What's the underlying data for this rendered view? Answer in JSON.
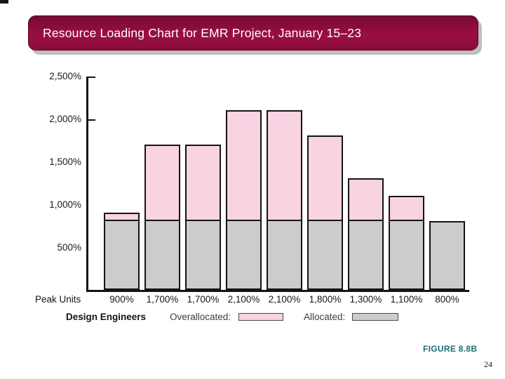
{
  "slide": {
    "title": "Resource Loading Chart for EMR Project, January 15–23",
    "figure_caption": "FIGURE 8.8B",
    "page_number": "24"
  },
  "chart_data": {
    "type": "bar",
    "stacked": true,
    "title": "Resource Loading Chart for EMR Project, January 15–23",
    "xlabel": "",
    "ylabel": "",
    "x_row_title": "Peak Units",
    "categories": [
      "900%",
      "1,700%",
      "1,700%",
      "2,100%",
      "2,100%",
      "1,800%",
      "1,300%",
      "1,100%",
      "800%"
    ],
    "peak_units": [
      900,
      1700,
      1700,
      2100,
      2100,
      1800,
      1300,
      1100,
      800
    ],
    "series": [
      {
        "name": "Allocated",
        "values": [
          800,
          800,
          800,
          800,
          800,
          800,
          800,
          800,
          800
        ],
        "color": "#cccccc"
      },
      {
        "name": "Overallocated",
        "values": [
          100,
          900,
          900,
          1300,
          1300,
          1000,
          500,
          300,
          0
        ],
        "color": "#f8d3e2"
      }
    ],
    "ylim": [
      0,
      2500
    ],
    "y_ticks": [
      "2,500%",
      "2,000%",
      "1,500%",
      "1,000%",
      "500%"
    ],
    "y_tick_values": [
      2500,
      2000,
      1500,
      1000,
      500
    ],
    "tick_marks_at": [
      2500,
      2000
    ],
    "grid": false,
    "legend_position": "bottom",
    "legend": {
      "resource_label": "Design Engineers",
      "overallocated_label": "Overallocated:",
      "allocated_label": "Allocated:"
    }
  },
  "colors": {
    "banner": "#8f0c3c",
    "banner_text": "#ffffff",
    "overallocated": "#f8d3e2",
    "allocated": "#cccccc",
    "bar_border": "#141414",
    "caption_teal": "#1d6b74",
    "shadow": "#bfbfbf"
  }
}
